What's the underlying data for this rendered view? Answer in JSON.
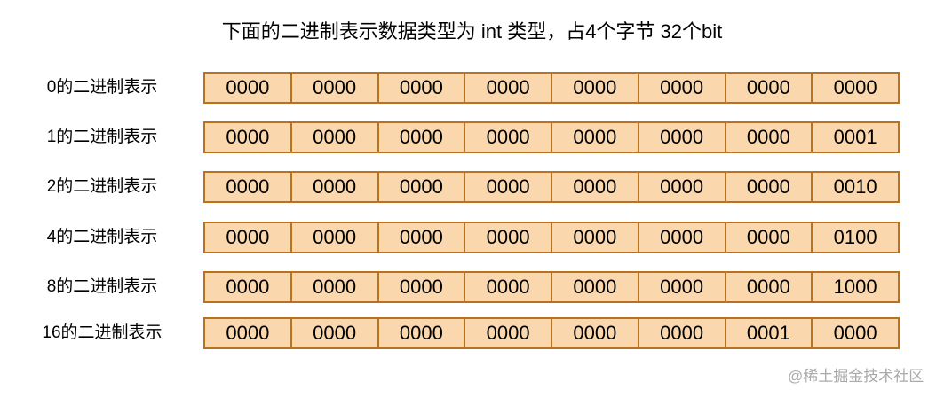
{
  "title": "下面的二进制表示数据类型为 int 类型，占4个字节 32个bit",
  "colors": {
    "cell_fill": "#fad7ac",
    "cell_border": "#b9731f"
  },
  "rows": [
    {
      "label": "0的二进制表示",
      "cells": [
        "0000",
        "0000",
        "0000",
        "0000",
        "0000",
        "0000",
        "0000",
        "0000"
      ]
    },
    {
      "label": "1的二进制表示",
      "cells": [
        "0000",
        "0000",
        "0000",
        "0000",
        "0000",
        "0000",
        "0000",
        "0001"
      ]
    },
    {
      "label": "2的二进制表示",
      "cells": [
        "0000",
        "0000",
        "0000",
        "0000",
        "0000",
        "0000",
        "0000",
        "0010"
      ]
    },
    {
      "label": "4的二进制表示",
      "cells": [
        "0000",
        "0000",
        "0000",
        "0000",
        "0000",
        "0000",
        "0000",
        "0100"
      ]
    },
    {
      "label": "8的二进制表示",
      "cells": [
        "0000",
        "0000",
        "0000",
        "0000",
        "0000",
        "0000",
        "0000",
        "1000"
      ]
    },
    {
      "label": "16的二进制表示",
      "cells": [
        "0000",
        "0000",
        "0000",
        "0000",
        "0000",
        "0000",
        "0001",
        "0000"
      ]
    }
  ],
  "watermark": "@稀土掘金技术社区"
}
